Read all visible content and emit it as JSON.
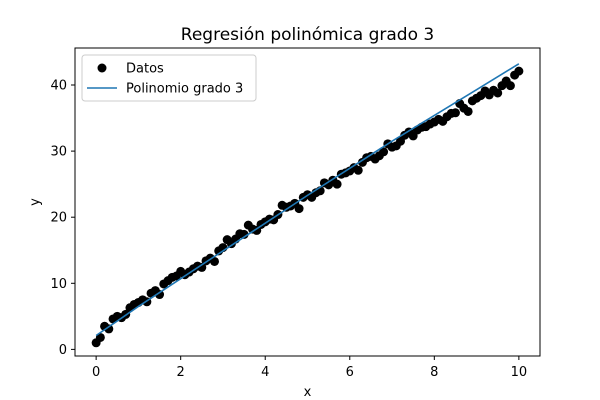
{
  "chart_data": {
    "type": "scatter",
    "title": "Regresión polinómica grado 3",
    "xlabel": "x",
    "ylabel": "y",
    "xlim": [
      -0.5,
      10.5
    ],
    "ylim": [
      -1.0,
      45.6
    ],
    "xticks": [
      0,
      2,
      4,
      6,
      8,
      10
    ],
    "yticks": [
      0,
      10,
      20,
      30,
      40
    ],
    "grid": false,
    "legend": "top-left",
    "series": [
      {
        "name": "Datos",
        "kind": "scatter",
        "color": "#000000",
        "x": [
          0.0,
          0.1,
          0.2,
          0.3,
          0.4,
          0.5,
          0.6,
          0.7,
          0.8,
          0.9,
          1.0,
          1.1,
          1.2,
          1.3,
          1.4,
          1.5,
          1.6,
          1.7,
          1.8,
          1.9,
          2.0,
          2.1,
          2.2,
          2.3,
          2.4,
          2.5,
          2.6,
          2.7,
          2.8,
          2.9,
          3.0,
          3.1,
          3.2,
          3.3,
          3.4,
          3.5,
          3.6,
          3.7,
          3.8,
          3.9,
          4.0,
          4.1,
          4.2,
          4.3,
          4.4,
          4.5,
          4.6,
          4.7,
          4.8,
          4.9,
          5.0,
          5.1,
          5.2,
          5.3,
          5.4,
          5.5,
          5.6,
          5.7,
          5.8,
          5.9,
          6.0,
          6.1,
          6.2,
          6.3,
          6.4,
          6.5,
          6.6,
          6.7,
          6.8,
          6.9,
          7.0,
          7.1,
          7.2,
          7.3,
          7.4,
          7.5,
          7.6,
          7.7,
          7.8,
          7.9,
          8.0,
          8.1,
          8.2,
          8.3,
          8.4,
          8.5,
          8.6,
          8.7,
          8.8,
          8.9,
          9.0,
          9.1,
          9.2,
          9.3,
          9.4,
          9.5,
          9.6,
          9.7,
          9.8,
          9.9,
          10.0
        ],
        "y": [
          1.0,
          1.8,
          3.5,
          3.1,
          4.6,
          5.0,
          4.8,
          5.3,
          6.3,
          6.8,
          7.1,
          7.5,
          7.2,
          8.5,
          8.9,
          8.3,
          9.9,
          10.4,
          10.9,
          11.1,
          11.8,
          11.3,
          11.7,
          12.2,
          12.6,
          12.4,
          13.4,
          13.8,
          13.3,
          14.9,
          15.4,
          16.6,
          16.0,
          16.7,
          17.5,
          17.4,
          18.8,
          18.2,
          18.0,
          18.9,
          19.3,
          19.7,
          19.6,
          20.4,
          21.8,
          21.5,
          21.7,
          22.1,
          21.3,
          23.0,
          23.4,
          23.0,
          23.7,
          24.0,
          25.2,
          24.9,
          25.6,
          25.0,
          26.5,
          26.7,
          27.0,
          27.5,
          27.1,
          28.3,
          29.0,
          29.2,
          28.8,
          29.3,
          29.9,
          31.1,
          30.6,
          30.8,
          31.5,
          32.4,
          32.9,
          32.3,
          33.2,
          33.6,
          33.7,
          34.1,
          34.4,
          34.8,
          34.5,
          35.2,
          35.7,
          35.8,
          37.2,
          36.5,
          36.0,
          37.6,
          38.0,
          38.4,
          39.1,
          38.5,
          39.2,
          38.8,
          39.9,
          40.6,
          39.9,
          41.5,
          42.1
        ]
      },
      {
        "name": "Polinomio grado 3",
        "kind": "line",
        "color": "#1f77b4",
        "x": [
          0,
          1,
          2,
          3,
          4,
          5,
          6,
          7,
          8,
          9,
          10
        ],
        "y": [
          2.1,
          6.5,
          10.7,
          14.9,
          19.1,
          23.3,
          27.4,
          31.5,
          35.4,
          39.3,
          43.2
        ]
      }
    ]
  }
}
